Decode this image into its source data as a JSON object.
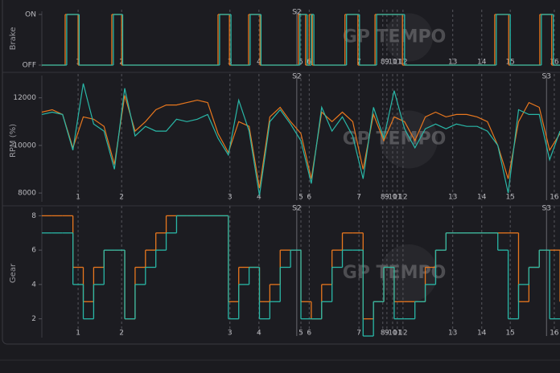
{
  "watermark": "GP TEMPO",
  "chart_data": [
    {
      "type": "step",
      "ylabel": "Brake",
      "xlim": [
        0,
        100
      ],
      "ylim": [
        0,
        1
      ],
      "yticks": [
        {
          "value": 0,
          "label": "OFF"
        },
        {
          "value": 1,
          "label": "ON"
        }
      ],
      "series": [
        {
          "color": "#e8771e",
          "x": [
            0,
            4.5,
            7.0,
            13.5,
            15.4,
            34.0,
            36.2,
            39.9,
            42.1,
            49.5,
            50.9,
            51.6,
            52.2,
            58.5,
            61.0,
            64.3,
            69.6,
            87.4,
            90.1,
            96.1,
            98.4
          ],
          "values": [
            0,
            1,
            0,
            1,
            0,
            1,
            0,
            1,
            0,
            1,
            0,
            1,
            0,
            1,
            0,
            1,
            0,
            1,
            0,
            1,
            0
          ]
        },
        {
          "color": "#29b7a7",
          "x": [
            0,
            4.8,
            7.2,
            13.8,
            15.6,
            34.3,
            36.5,
            40.2,
            42.3,
            49.8,
            51.2,
            52.0,
            52.5,
            58.8,
            61.3,
            64.6,
            70.0,
            87.7,
            90.4,
            96.4,
            98.7
          ],
          "values": [
            0,
            1,
            0,
            1,
            0,
            1,
            0,
            1,
            0,
            1,
            0,
            1,
            0,
            1,
            0,
            1,
            0,
            1,
            0,
            1,
            0
          ]
        }
      ],
      "markers": [
        {
          "label": "1",
          "x": 7.0
        },
        {
          "label": "2",
          "x": 15.4
        },
        {
          "label": "3",
          "x": 36.3
        },
        {
          "label": "4",
          "x": 41.9
        },
        {
          "label": "S2",
          "x": 49.2,
          "sector": true
        },
        {
          "label": "5",
          "x": 50.0
        },
        {
          "label": "6",
          "x": 51.6
        },
        {
          "label": "7",
          "x": 61.2
        },
        {
          "label": "8",
          "x": 65.8
        },
        {
          "label": "9",
          "x": 66.6
        },
        {
          "label": "10",
          "x": 67.7
        },
        {
          "label": "11",
          "x": 68.6
        },
        {
          "label": "12",
          "x": 69.7
        },
        {
          "label": "13",
          "x": 79.3
        },
        {
          "label": "14",
          "x": 84.9
        },
        {
          "label": "15",
          "x": 90.4
        },
        {
          "label": "16",
          "x": 98.9
        }
      ]
    },
    {
      "type": "line",
      "ylabel": "RPM (%)",
      "xlim": [
        0,
        100
      ],
      "ylim": [
        7700,
        12800
      ],
      "yticks": [
        8000,
        10000,
        12000
      ],
      "x": [
        0,
        2,
        4,
        6,
        8,
        10,
        12,
        14,
        16,
        18,
        20,
        22,
        24,
        26,
        28,
        30,
        32,
        34,
        36,
        38,
        40,
        42,
        44,
        46,
        48,
        50,
        52,
        54,
        56,
        58,
        60,
        62,
        64,
        66,
        68,
        70,
        72,
        74,
        76,
        78,
        80,
        82,
        84,
        86,
        88,
        90,
        92,
        94,
        96,
        98,
        100
      ],
      "series": [
        {
          "color": "#e8771e",
          "values": [
            11400,
            11500,
            11300,
            9900,
            11200,
            11100,
            10800,
            9200,
            12100,
            10600,
            11000,
            11500,
            11700,
            11700,
            11800,
            11900,
            11800,
            10500,
            9700,
            11000,
            10800,
            8200,
            11200,
            11600,
            11000,
            10500,
            8600,
            11400,
            11000,
            11400,
            11000,
            9000,
            11300,
            10200,
            11200,
            11000,
            10200,
            11200,
            11400,
            11200,
            11300,
            11300,
            11200,
            11000,
            10000,
            8600,
            11000,
            11800,
            11600,
            9800,
            10500
          ]
        },
        {
          "color": "#29b7a7",
          "values": [
            11300,
            11400,
            11300,
            9800,
            12600,
            10900,
            10600,
            9000,
            12400,
            10400,
            10800,
            10600,
            10600,
            11100,
            11000,
            11100,
            11300,
            10300,
            9600,
            11900,
            10600,
            7900,
            11000,
            11500,
            10900,
            10200,
            8400,
            11600,
            10600,
            11200,
            10400,
            8600,
            11600,
            10300,
            12300,
            10700,
            9900,
            10700,
            10900,
            10700,
            10900,
            10800,
            10800,
            10600,
            10000,
            8000,
            11500,
            11300,
            11300,
            9400,
            10600
          ]
        }
      ],
      "markers": [
        {
          "label": "1",
          "x": 7.0
        },
        {
          "label": "2",
          "x": 15.4
        },
        {
          "label": "3",
          "x": 36.3
        },
        {
          "label": "4",
          "x": 41.9
        },
        {
          "label": "S2",
          "x": 49.2,
          "sector": true
        },
        {
          "label": "5",
          "x": 50.0
        },
        {
          "label": "6",
          "x": 51.6
        },
        {
          "label": "7",
          "x": 61.2
        },
        {
          "label": "8",
          "x": 65.8
        },
        {
          "label": "9",
          "x": 66.6
        },
        {
          "label": "10",
          "x": 67.7
        },
        {
          "label": "11",
          "x": 68.6
        },
        {
          "label": "12",
          "x": 69.7
        },
        {
          "label": "13",
          "x": 79.3
        },
        {
          "label": "14",
          "x": 84.9
        },
        {
          "label": "15",
          "x": 90.4
        },
        {
          "label": "S3",
          "x": 97.4,
          "sector": true
        },
        {
          "label": "16",
          "x": 98.9
        }
      ]
    },
    {
      "type": "step",
      "ylabel": "Gear",
      "xlim": [
        0,
        100
      ],
      "ylim": [
        1,
        8.3
      ],
      "yticks": [
        2,
        4,
        6,
        8
      ],
      "x": [
        0,
        2,
        4,
        6,
        8,
        10,
        12,
        14,
        16,
        18,
        20,
        22,
        24,
        26,
        28,
        30,
        32,
        34,
        36,
        38,
        40,
        42,
        44,
        46,
        48,
        50,
        52,
        54,
        56,
        58,
        60,
        62,
        64,
        66,
        68,
        70,
        72,
        74,
        76,
        78,
        80,
        82,
        84,
        86,
        88,
        90,
        92,
        94,
        96,
        98,
        100
      ],
      "series": [
        {
          "color": "#e8771e",
          "values": [
            8,
            8,
            8,
            5,
            3,
            5,
            6,
            6,
            2,
            5,
            6,
            7,
            8,
            8,
            8,
            8,
            8,
            8,
            3,
            5,
            5,
            3,
            4,
            6,
            6,
            3,
            2,
            4,
            6,
            7,
            7,
            2,
            3,
            5,
            3,
            3,
            3,
            5,
            6,
            7,
            7,
            7,
            7,
            7,
            7,
            7,
            3,
            5,
            6,
            6,
            3
          ]
        },
        {
          "color": "#29b7a7",
          "values": [
            7,
            7,
            7,
            4,
            2,
            4,
            6,
            6,
            2,
            4,
            5,
            6,
            7,
            8,
            8,
            8,
            8,
            8,
            2,
            4,
            5,
            2,
            3,
            5,
            6,
            2,
            2,
            3,
            5,
            6,
            6,
            1,
            3,
            5,
            2,
            2,
            3,
            4,
            6,
            7,
            7,
            7,
            7,
            7,
            6,
            2,
            4,
            5,
            6,
            2,
            2
          ]
        }
      ],
      "markers": [
        {
          "label": "1",
          "x": 7.0
        },
        {
          "label": "2",
          "x": 15.4
        },
        {
          "label": "3",
          "x": 36.3
        },
        {
          "label": "4",
          "x": 41.9
        },
        {
          "label": "S2",
          "x": 49.2,
          "sector": true
        },
        {
          "label": "5",
          "x": 50.0
        },
        {
          "label": "6",
          "x": 51.6
        },
        {
          "label": "7",
          "x": 61.2
        },
        {
          "label": "8",
          "x": 65.8
        },
        {
          "label": "9",
          "x": 66.6
        },
        {
          "label": "10",
          "x": 67.7
        },
        {
          "label": "11",
          "x": 68.6
        },
        {
          "label": "12",
          "x": 69.7
        },
        {
          "label": "13",
          "x": 79.3
        },
        {
          "label": "14",
          "x": 84.9
        },
        {
          "label": "15",
          "x": 90.4
        },
        {
          "label": "S3",
          "x": 97.4,
          "sector": true
        },
        {
          "label": "16",
          "x": 98.9
        }
      ]
    }
  ]
}
